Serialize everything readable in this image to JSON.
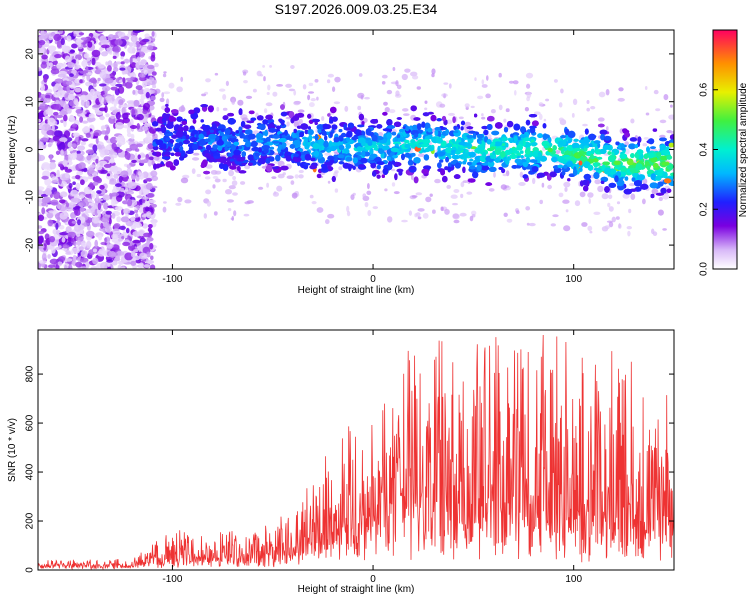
{
  "title": "S197.2026.009.03.25.E34",
  "chart_data": [
    {
      "type": "heatmap",
      "xlabel": "Height of straight line (km)",
      "ylabel": "Frequency (Hz)",
      "xlim": [
        -167,
        150
      ],
      "ylim": [
        -25,
        25
      ],
      "xticks": [
        -100,
        0,
        100
      ],
      "yticks": [
        -20,
        -10,
        0,
        10,
        20
      ],
      "grid": false,
      "description_of_signal": [
        {
          "x": -110,
          "y": 2
        },
        {
          "x": -90,
          "y": 2
        },
        {
          "x": -70,
          "y": 1
        },
        {
          "x": -50,
          "y": 2
        },
        {
          "x": -30,
          "y": 1
        },
        {
          "x": -10,
          "y": 0
        },
        {
          "x": 10,
          "y": 1
        },
        {
          "x": 30,
          "y": 1
        },
        {
          "x": 50,
          "y": 0
        },
        {
          "x": 70,
          "y": 0
        },
        {
          "x": 90,
          "y": 0
        },
        {
          "x": 110,
          "y": -2
        },
        {
          "x": 130,
          "y": -3
        },
        {
          "x": 148,
          "y": -3
        }
      ],
      "colorbar": {
        "label": "Normalized spectral amplitude",
        "range": [
          0,
          0.8
        ],
        "ticks": [
          "0.0",
          "0.2",
          "0.4",
          "0.6"
        ]
      }
    },
    {
      "type": "line",
      "xlabel": "Height of straight line (km)",
      "ylabel": "SNR (10 * v/v)",
      "xlim": [
        -167,
        150
      ],
      "ylim": [
        0,
        980
      ],
      "xticks": [
        -100,
        0,
        100
      ],
      "yticks": [
        0,
        200,
        400,
        600,
        800
      ],
      "grid": false,
      "series": [
        {
          "name": "SNR",
          "color": "#ee3333",
          "envelope": [
            {
              "x": -167,
              "base": 20,
              "peak": 40
            },
            {
              "x": -120,
              "base": 20,
              "peak": 45
            },
            {
              "x": -100,
              "base": 40,
              "peak": 170
            },
            {
              "x": -60,
              "base": 50,
              "peak": 160
            },
            {
              "x": -40,
              "base": 80,
              "peak": 250
            },
            {
              "x": -20,
              "base": 150,
              "peak": 520
            },
            {
              "x": 0,
              "base": 200,
              "peak": 700
            },
            {
              "x": 20,
              "base": 200,
              "peak": 950
            },
            {
              "x": 60,
              "base": 220,
              "peak": 970
            },
            {
              "x": 100,
              "base": 200,
              "peak": 960
            },
            {
              "x": 130,
              "base": 150,
              "peak": 900
            },
            {
              "x": 150,
              "base": 150,
              "peak": 750
            }
          ]
        }
      ]
    }
  ]
}
